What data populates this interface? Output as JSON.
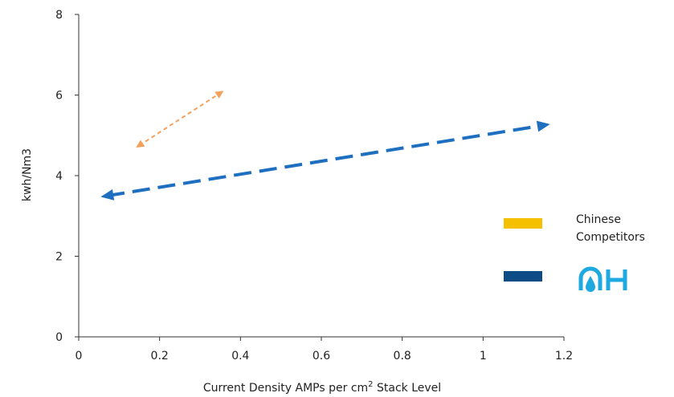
{
  "chart_data": {
    "type": "line",
    "xlabel": "Current Density AMPs per cm",
    "xlabel_sup": "2",
    "xlabel_suffix": " Stack Level",
    "ylabel": "kwh/Nm3",
    "xlim": [
      0,
      1.2
    ],
    "ylim": [
      0,
      8
    ],
    "x_ticks": [
      "0",
      "0.2",
      "0.4",
      "0.6",
      "0.8",
      "1",
      "1.2"
    ],
    "y_ticks": [
      "0",
      "2",
      "4",
      "6",
      "8"
    ],
    "grid": false,
    "legend_position": "right",
    "series": [
      {
        "name": "Chinese Competitors",
        "style": "dashed-double-arrow",
        "color": "#F5A05A",
        "x": [
          0.15,
          0.35
        ],
        "y": [
          4.75,
          6.05
        ]
      },
      {
        "name": "",
        "style": "dashed-double-arrow",
        "color": "#1E6FBF",
        "x": [
          0.07,
          1.15
        ],
        "y": [
          3.5,
          5.25
        ]
      }
    ],
    "legend": [
      {
        "label": "Chinese\nCompetitors",
        "line1": "Chinese",
        "line2": "Competitors",
        "swatch_color": "#F5C000"
      },
      {
        "label": "",
        "swatch_color": "#0E4C85",
        "logo_color": "#1FA9E1",
        "logo": "company-logo"
      }
    ]
  }
}
